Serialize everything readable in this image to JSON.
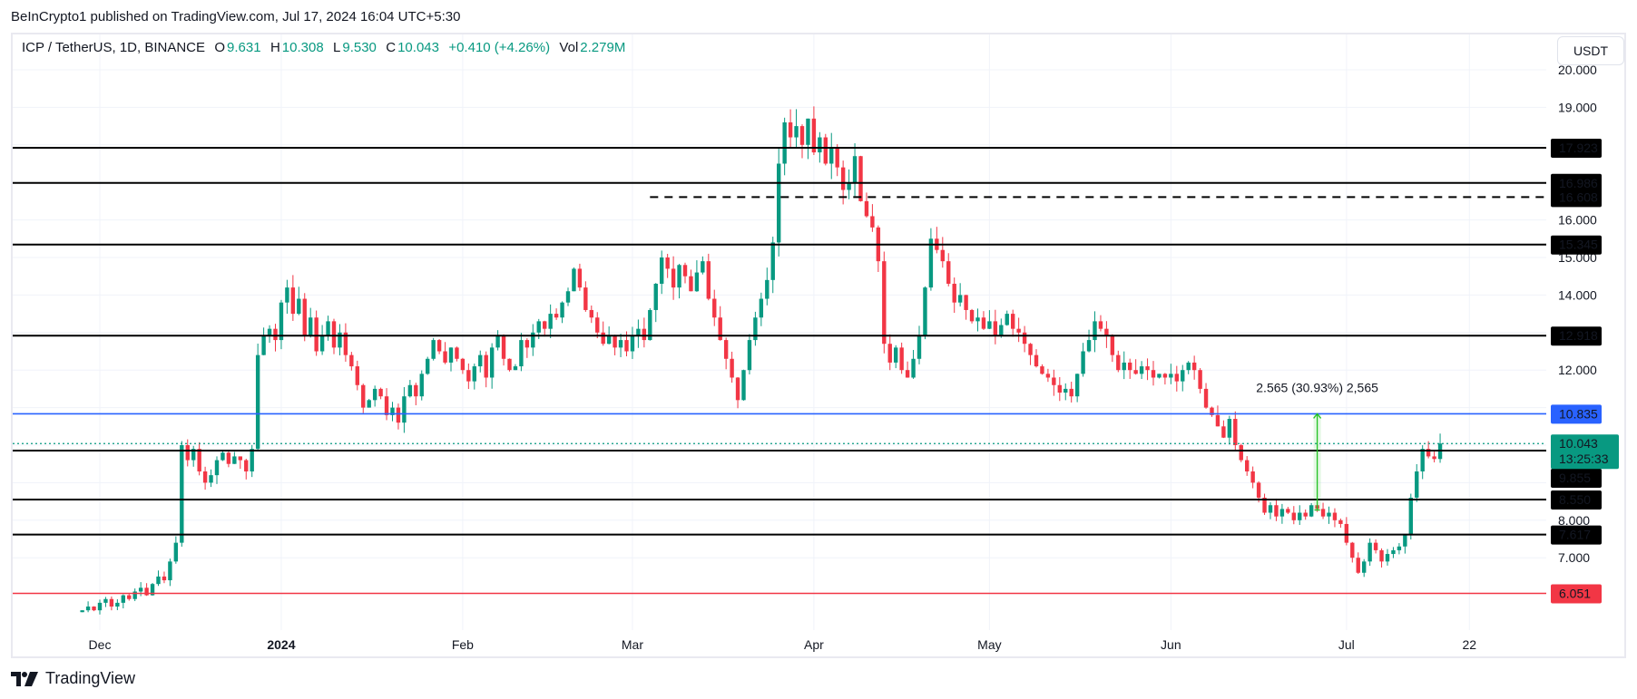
{
  "header": {
    "published": "BeInCrypto1 published on TradingView.com, Jul 17, 2024 16:04 UTC+5:30"
  },
  "legend": {
    "symbol": "ICP / TetherUS, 1D, BINANCE",
    "open_label": "O",
    "open": "9.631",
    "high_label": "H",
    "high": "10.308",
    "low_label": "L",
    "low": "9.530",
    "close_label": "C",
    "close": "10.043",
    "change": "+0.410 (+4.26%)",
    "vol_label": "Vol",
    "vol": "2.279M"
  },
  "currency_button": "USDT",
  "footer": {
    "brand": "TradingView"
  },
  "colors": {
    "up": "#089981",
    "down": "#f23645",
    "blue_line": "#2962ff",
    "red_line": "#f23645",
    "measure": "#22c322"
  },
  "chart_data": {
    "type": "candlestick",
    "title": "ICP / TetherUS, 1D, BINANCE",
    "ylim": [
      5.2,
      21.0
    ],
    "ylabel": "USDT",
    "y_ticks": [
      "20.000",
      "19.000",
      "16.000",
      "15.000",
      "14.000",
      "12.000",
      "8.000",
      "7.000"
    ],
    "y_tick_values": [
      20,
      19,
      16,
      15,
      14,
      12,
      8,
      7
    ],
    "x_ticks": [
      {
        "label": "Dec",
        "date": "2023-12-01",
        "bold": false
      },
      {
        "label": "2024",
        "date": "2024-01-01",
        "bold": true
      },
      {
        "label": "Feb",
        "date": "2024-02-01",
        "bold": false
      },
      {
        "label": "Mar",
        "date": "2024-03-01",
        "bold": false
      },
      {
        "label": "Apr",
        "date": "2024-04-01",
        "bold": false
      },
      {
        "label": "May",
        "date": "2024-05-01",
        "bold": false
      },
      {
        "label": "Jun",
        "date": "2024-06-01",
        "bold": false
      },
      {
        "label": "Jul",
        "date": "2024-07-01",
        "bold": false
      },
      {
        "label": "22",
        "date": "2024-07-22",
        "bold": false
      }
    ],
    "start_date": "2023-11-28",
    "closes": [
      5.6,
      5.7,
      5.6,
      5.8,
      5.9,
      5.7,
      5.8,
      6.0,
      5.9,
      6.1,
      6.2,
      6.0,
      6.3,
      6.5,
      6.4,
      6.9,
      7.4,
      10.0,
      9.6,
      9.9,
      9.3,
      9.0,
      9.2,
      9.6,
      9.8,
      9.5,
      9.7,
      9.6,
      9.3,
      9.9,
      12.4,
      12.9,
      13.1,
      12.8,
      13.8,
      14.2,
      13.5,
      13.9,
      12.9,
      13.4,
      12.5,
      12.9,
      13.3,
      12.6,
      13.0,
      12.4,
      12.1,
      11.6,
      11.0,
      11.2,
      11.5,
      11.3,
      10.8,
      11.0,
      10.6,
      11.3,
      11.6,
      11.3,
      11.9,
      12.3,
      12.8,
      12.5,
      12.2,
      12.6,
      12.3,
      12.0,
      11.7,
      12.1,
      12.4,
      11.8,
      12.6,
      12.9,
      12.3,
      12.0,
      12.1,
      12.8,
      12.6,
      13.0,
      13.3,
      13.1,
      13.5,
      13.4,
      13.8,
      14.1,
      14.7,
      14.2,
      13.6,
      13.4,
      13.0,
      12.7,
      12.9,
      12.6,
      12.8,
      12.5,
      12.9,
      13.1,
      12.8,
      13.6,
      14.3,
      15.0,
      14.7,
      14.2,
      14.8,
      14.5,
      14.1,
      14.6,
      14.9,
      13.9,
      13.4,
      12.8,
      12.3,
      11.8,
      11.2,
      12.0,
      12.8,
      13.4,
      13.9,
      14.4,
      15.4,
      17.5,
      18.6,
      18.2,
      18.5,
      18.0,
      18.7,
      17.8,
      18.2,
      17.5,
      17.9,
      17.4,
      16.8,
      17.0,
      17.7,
      16.5,
      16.1,
      15.8,
      14.9,
      12.7,
      12.2,
      12.6,
      12.0,
      11.8,
      12.3,
      12.9,
      14.2,
      15.5,
      15.2,
      14.9,
      14.3,
      13.8,
      14.0,
      13.6,
      13.3,
      13.4,
      13.1,
      13.3,
      12.9,
      13.2,
      13.5,
      13.1,
      13.0,
      12.7,
      12.4,
      12.1,
      11.9,
      11.8,
      11.6,
      11.4,
      11.5,
      11.3,
      11.9,
      12.5,
      12.8,
      13.3,
      13.1,
      12.9,
      12.4,
      12.0,
      12.2,
      12.0,
      11.9,
      12.1,
      12.0,
      11.8,
      11.9,
      11.8,
      11.9,
      11.7,
      12.0,
      12.2,
      12.0,
      11.5,
      11.0,
      10.8,
      10.5,
      10.2,
      10.7,
      10.0,
      9.6,
      9.3,
      9.0,
      8.6,
      8.2,
      8.4,
      8.1,
      8.3,
      8.2,
      8.0,
      8.2,
      8.1,
      8.4,
      8.3,
      8.1,
      8.2,
      8.0,
      7.9,
      7.4,
      7.0,
      6.6,
      6.9,
      7.4,
      7.2,
      6.9,
      7.1,
      7.2,
      7.3,
      7.6,
      8.6,
      9.3,
      9.9,
      9.7,
      9.631,
      10.043
    ],
    "last_candle": {
      "date": "2024-07-17",
      "open": 9.631,
      "high": 10.308,
      "low": 9.53,
      "close": 10.043
    },
    "horizontal_levels": [
      {
        "value": 17.923,
        "label": "17.923",
        "style": "solid",
        "color": "#000000"
      },
      {
        "value": 16.986,
        "label": "16.986",
        "style": "solid",
        "color": "#000000"
      },
      {
        "value": 16.608,
        "label": "16.608",
        "style": "dashed",
        "color": "#000000",
        "from_date": "2024-03-04"
      },
      {
        "value": 15.345,
        "label": "15.345",
        "style": "solid",
        "color": "#000000"
      },
      {
        "value": 12.918,
        "label": "12.918",
        "style": "solid",
        "color": "#000000"
      },
      {
        "value": 10.835,
        "label": "10.835",
        "style": "solid",
        "color": "#2962ff"
      },
      {
        "value": 9.855,
        "label": "9.855",
        "style": "solid",
        "color": "#000000"
      },
      {
        "value": 8.55,
        "label": "8.550",
        "style": "solid",
        "color": "#000000"
      },
      {
        "value": 7.617,
        "label": "7.617",
        "style": "solid",
        "color": "#000000"
      },
      {
        "value": 6.051,
        "label": "6.051",
        "style": "solid",
        "color": "#f23645"
      }
    ],
    "current_price": {
      "value": 10.043,
      "label": "10.043",
      "countdown": "13:25:33"
    },
    "measure": {
      "date": "2024-06-26",
      "from": 8.27,
      "to": 10.835,
      "label": "2.565 (30.93%) 2,565"
    }
  }
}
